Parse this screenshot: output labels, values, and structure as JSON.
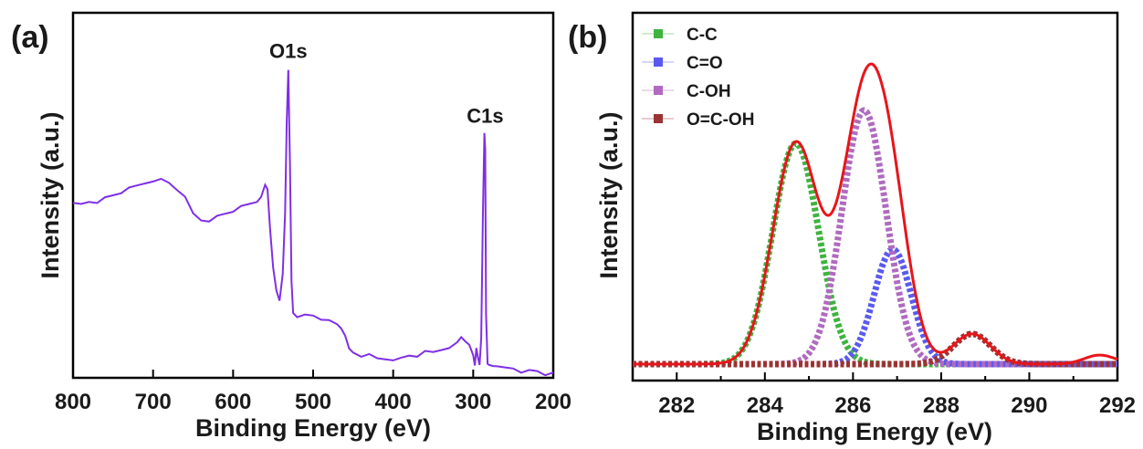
{
  "chart_data": [
    {
      "type": "line",
      "panel_label": "(a)",
      "xlabel": "Binding Energy (eV)",
      "ylabel": "Intensity (a.u.)",
      "xlim": [
        800,
        200
      ],
      "x_reversed": true,
      "xticks": [
        800,
        700,
        600,
        500,
        400,
        300,
        200
      ],
      "y_ticks_labeled": false,
      "color": "#7f2fe6",
      "annotations": [
        {
          "text": "O1s",
          "x": 531
        },
        {
          "text": "C1s",
          "x": 285
        }
      ],
      "series": [
        {
          "x": [
            800,
            790,
            780,
            770,
            760,
            750,
            740,
            730,
            720,
            710,
            700,
            690,
            680,
            670,
            660,
            650,
            640,
            630,
            620,
            610,
            600,
            590,
            580,
            570,
            565,
            560,
            557,
            554,
            550,
            546,
            542,
            538,
            535,
            533,
            531,
            529,
            527,
            525,
            520,
            510,
            500,
            490,
            480,
            470,
            465,
            460,
            455,
            450,
            440,
            430,
            420,
            410,
            400,
            390,
            380,
            370,
            360,
            350,
            340,
            330,
            320,
            315,
            310,
            305,
            300,
            298,
            296,
            294,
            292,
            290,
            288,
            286,
            285,
            284,
            282,
            280,
            275,
            270,
            260,
            250,
            240,
            230,
            220,
            210,
            200
          ],
          "y": [
            0.55,
            0.55,
            0.56,
            0.56,
            0.57,
            0.58,
            0.59,
            0.6,
            0.61,
            0.62,
            0.63,
            0.63,
            0.62,
            0.6,
            0.57,
            0.52,
            0.5,
            0.5,
            0.51,
            0.52,
            0.53,
            0.54,
            0.55,
            0.56,
            0.58,
            0.61,
            0.6,
            0.48,
            0.34,
            0.27,
            0.24,
            0.33,
            0.52,
            0.82,
            0.99,
            0.68,
            0.3,
            0.2,
            0.19,
            0.19,
            0.19,
            0.18,
            0.17,
            0.16,
            0.15,
            0.13,
            0.08,
            0.07,
            0.06,
            0.06,
            0.05,
            0.05,
            0.05,
            0.05,
            0.06,
            0.06,
            0.07,
            0.07,
            0.08,
            0.09,
            0.1,
            0.12,
            0.11,
            0.09,
            0.06,
            0.03,
            0.09,
            0.05,
            0.03,
            0.12,
            0.5,
            0.78,
            0.73,
            0.2,
            0.03,
            0.03,
            0.03,
            0.02,
            0.02,
            0.02,
            0.01,
            0.01,
            0.01,
            0.0,
            0.0
          ]
        }
      ]
    },
    {
      "type": "line",
      "panel_label": "(b)",
      "xlabel": "Binding Energy (eV)",
      "ylabel": "Intensity (a.u.)",
      "xlim": [
        281,
        292
      ],
      "xticks": [
        282,
        284,
        286,
        288,
        290,
        292
      ],
      "y_ticks_labeled": false,
      "legend_position": "top-left",
      "series": [
        {
          "name": "C-C",
          "color": "#3fb33f",
          "style": "dotted",
          "center": 284.7,
          "height": 0.73,
          "sigma": 0.52
        },
        {
          "name": "C=O",
          "color": "#5a5aee",
          "style": "dotted",
          "center": 286.9,
          "height": 0.38,
          "sigma": 0.42
        },
        {
          "name": "C-OH",
          "color": "#b06ac0",
          "style": "dotted",
          "center": 286.25,
          "height": 0.84,
          "sigma": 0.5
        },
        {
          "name": "O=C-OH",
          "color": "#9b3333",
          "style": "dotted",
          "center": 288.7,
          "height": 0.1,
          "sigma": 0.42
        }
      ],
      "envelope": {
        "color": "#e8151a",
        "style": "solid",
        "tail": {
          "center": 291.6,
          "height": 0.03,
          "sigma": 0.35
        }
      }
    }
  ]
}
